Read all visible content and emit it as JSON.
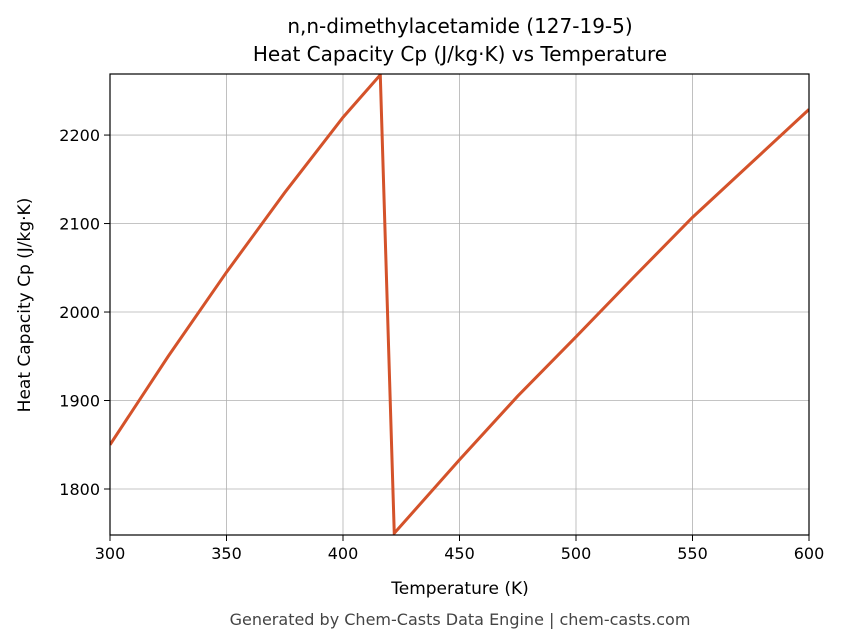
{
  "chart_data": {
    "type": "line",
    "title": "n,n-dimethylacetamide (127-19-5)",
    "subtitle": "Heat Capacity Cp (J/kg·K) vs Temperature",
    "x_label": "Temperature (K)",
    "y_label": "Heat Capacity Cp (J/kg·K)",
    "footer": "Generated by Chem-Casts Data Engine | chem-casts.com",
    "x": [
      300,
      325,
      350,
      375,
      400,
      416,
      422,
      450,
      475,
      500,
      525,
      550,
      575,
      600
    ],
    "series": [
      {
        "name": "Cp",
        "color": "#d4522a",
        "values": [
          1850,
          1950,
          2045,
          2135,
          2220,
          2268,
          1750,
          1833,
          1905,
          1972,
          2040,
          2107,
          2168,
          2229
        ]
      }
    ],
    "xlim": [
      300,
      600
    ],
    "ylim": [
      1748,
      2269
    ],
    "xticks": [
      300,
      350,
      400,
      450,
      500,
      550,
      600
    ],
    "yticks": [
      1800,
      1900,
      2000,
      2100,
      2200
    ],
    "grid": true
  }
}
